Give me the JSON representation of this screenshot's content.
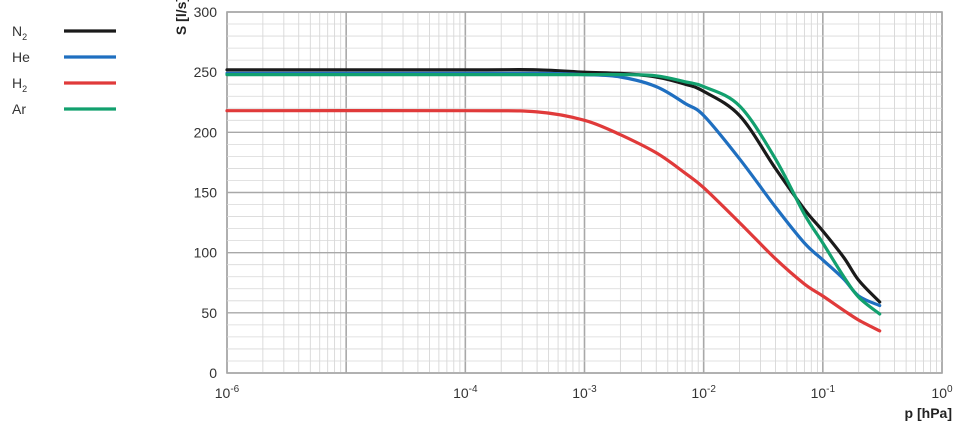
{
  "chart_data": {
    "type": "line",
    "title": "",
    "xlabel": "p [hPa]",
    "ylabel": "S [l/s]",
    "x_scale": "log",
    "xlim": [
      1e-06,
      1
    ],
    "ylim": [
      0,
      300
    ],
    "x_ticks": [
      {
        "base": "10",
        "exp": "-6",
        "value": 1e-06
      },
      {
        "base": "10",
        "exp": "-4",
        "value": 0.0001
      },
      {
        "base": "10",
        "exp": "-3",
        "value": 0.001
      },
      {
        "base": "10",
        "exp": "-2",
        "value": 0.01
      },
      {
        "base": "10",
        "exp": "-1",
        "value": 0.1
      },
      {
        "base": "10",
        "exp": "0",
        "value": 1
      }
    ],
    "y_ticks": [
      {
        "label": "0",
        "value": 0
      },
      {
        "label": "50",
        "value": 50
      },
      {
        "label": "100",
        "value": 100
      },
      {
        "label": "150",
        "value": 150
      },
      {
        "label": "200",
        "value": 200
      },
      {
        "label": "250",
        "value": 250
      },
      {
        "label": "300",
        "value": 300
      }
    ],
    "grid": true,
    "legend_position": "left",
    "series": [
      {
        "name": "N",
        "subscript": "2",
        "color": "#1a1a1a",
        "x": [
          1e-06,
          0.0001,
          0.0004,
          0.001,
          0.002,
          0.004,
          0.007,
          0.01,
          0.02,
          0.04,
          0.07,
          0.1,
          0.15,
          0.2,
          0.3
        ],
        "y": [
          252,
          252,
          252,
          250,
          249,
          246,
          240,
          234,
          214,
          170,
          136,
          118,
          96,
          77,
          59
        ]
      },
      {
        "name": "He",
        "subscript": "",
        "color": "#1f6fc0",
        "x": [
          1e-06,
          0.0001,
          0.0004,
          0.001,
          0.002,
          0.004,
          0.007,
          0.01,
          0.02,
          0.04,
          0.07,
          0.1,
          0.15,
          0.2,
          0.3
        ],
        "y": [
          249,
          249,
          249,
          248,
          246,
          238,
          224,
          214,
          178,
          138,
          108,
          94,
          78,
          64,
          56
        ]
      },
      {
        "name": "H",
        "subscript": "2",
        "color": "#e03a3a",
        "x": [
          1e-06,
          0.0001,
          0.0004,
          0.001,
          0.002,
          0.004,
          0.007,
          0.01,
          0.02,
          0.04,
          0.07,
          0.1,
          0.15,
          0.2,
          0.3
        ],
        "y": [
          218,
          218,
          217,
          210,
          198,
          183,
          166,
          154,
          125,
          95,
          74,
          64,
          52,
          44,
          35
        ]
      },
      {
        "name": "Ar",
        "subscript": "",
        "color": "#12a06e",
        "x": [
          1e-06,
          0.0001,
          0.0004,
          0.001,
          0.002,
          0.004,
          0.007,
          0.01,
          0.02,
          0.04,
          0.07,
          0.1,
          0.15,
          0.2,
          0.3
        ],
        "y": [
          248,
          248,
          248,
          248,
          248,
          247,
          242,
          238,
          222,
          178,
          132,
          108,
          80,
          63,
          49
        ]
      }
    ]
  }
}
